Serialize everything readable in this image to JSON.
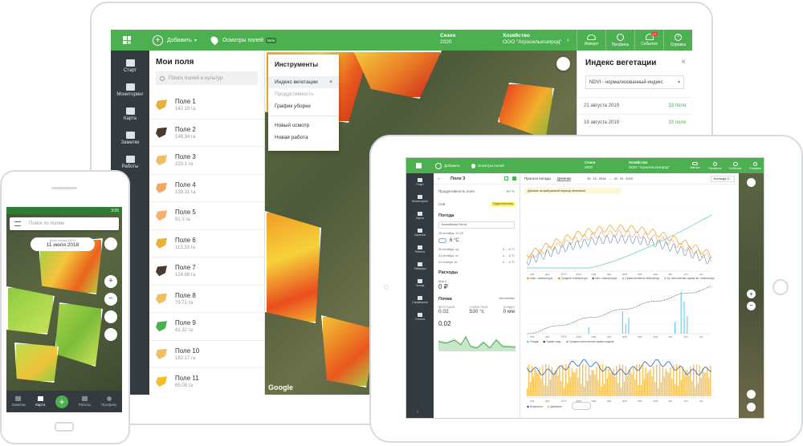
{
  "laptop": {
    "topbar": {
      "add_label": "Добавить",
      "inspections_label": "Осмотры полей",
      "beta": "Beta",
      "season_label": "Сезон",
      "season_value": "2020",
      "farm_label": "Хозяйство",
      "farm_value": "ООО \"Агросельхозпрод\"",
      "import": "Импорт",
      "profile": "Профиль",
      "events": "События",
      "events_badge": "22",
      "help": "Справка"
    },
    "sidebar": [
      "Старт",
      "Мониторинг",
      "Карта",
      "Заметки",
      "Работы",
      "Таймеры",
      "Склад",
      "Справочник",
      "Отчеты"
    ],
    "fields_panel": {
      "title": "Мои поля",
      "search_placeholder": "Поиск полей и культур",
      "fields": [
        {
          "name": "Поле 1",
          "area": "142.18 га",
          "color": "#e8b23a"
        },
        {
          "name": "Поле 2",
          "area": "148.34 га",
          "color": "#4a3a30"
        },
        {
          "name": "Поле 3",
          "area": "223.1 га",
          "color": "#f0c060"
        },
        {
          "name": "Поле 4",
          "area": "139.31 га",
          "color": "#f2a860"
        },
        {
          "name": "Поле 5",
          "area": "91.3 га",
          "color": "#f6b070"
        },
        {
          "name": "Поле 6",
          "area": "113.33 га",
          "color": "#e8b23a"
        },
        {
          "name": "Поле 7",
          "area": "124.68 га",
          "color": "#4a3a30"
        },
        {
          "name": "Поле 8",
          "area": "79.71 га",
          "color": "#f0c060"
        },
        {
          "name": "Поле 9",
          "area": "41.32 га",
          "color": "#4caf50"
        },
        {
          "name": "Поле 10",
          "area": "182.17 га",
          "color": "#f0c060"
        },
        {
          "name": "Поле 11",
          "area": "65.08 га",
          "color": "#f4c030"
        }
      ]
    },
    "tools": {
      "title": "Инструменты",
      "items": [
        "Индекс вегетации",
        "Продуктивность",
        "График уборки",
        "Новый осмотр",
        "Новая работа"
      ],
      "close": "×"
    },
    "map_brand": "Google",
    "vegetation": {
      "title": "Индекс вегетации",
      "select": "NDVI - нормализованный индекс",
      "rows": [
        {
          "date": "21 августа 2019",
          "count": "33 поля"
        },
        {
          "date": "19 августа 2019",
          "count": "33 поля"
        }
      ]
    }
  },
  "phone": {
    "time": "3:05",
    "search_placeholder": "Поиск по полям",
    "date_caption": "Дата снимка NDVI",
    "date": "11 июля 2018",
    "nav": [
      "Заметки",
      "Карта",
      "Работы",
      "Профиль"
    ]
  },
  "tablet": {
    "topbar": {
      "add_label": "Добавить",
      "inspections_label": "Осмотры полей",
      "season_label": "Сезон",
      "season_value": "2020",
      "farm_label": "Хозяйство",
      "farm_value": "ООО \"Агросельхозпрод\"",
      "import": "Импорт",
      "profile": "Профиль",
      "events": "События",
      "help": "Справка"
    },
    "sidebar": [
      "Старт",
      "Мониторинг",
      "Карта",
      "Заметки",
      "Работы",
      "Таймеры",
      "Склад",
      "Справочник",
      "Отчеты"
    ],
    "panel": {
      "title": "Поле 3",
      "productivity": "Продуктивность поля",
      "productivity_value": "90 %",
      "crop_label": "Сев",
      "crop_value": "Подсолнечник",
      "weather_title": "Погода",
      "weather_station": "Каспийская Бетта",
      "weather_date": "29 октября, 17:02",
      "weather_temp": "6 °С",
      "forecast": [
        {
          "day": "30 октября, ср",
          "temp": "5 ... 8 °С"
        },
        {
          "day": "31 октября, чт",
          "temp": "-1 ... 6 °С"
        },
        {
          "day": "01 ноября, пт",
          "temp": "-2 ... 4 °С"
        }
      ],
      "expenses_title": "Расходы",
      "expenses_total_label": "Всего",
      "expenses_total": "0 ₽",
      "soil_title": "Почва",
      "soil_type": "Чернозёмы",
      "soil_metrics": [
        {
          "label": "ВЕГЕТАЦИЯ",
          "value": "0.02"
        },
        {
          "label": "СУММА ТЕМП.",
          "value": "530 °с"
        },
        {
          "label": "ОСАДКИ",
          "value": "0 мм"
        }
      ],
      "chart_value": "0.02"
    },
    "charts": {
      "tab_weather": "Прогноз погоды",
      "tab_diary": "Дневник",
      "date_from": "30 . 10 . 2018",
      "date_to": "29 . 10 . 2019",
      "station": "Костанда О...",
      "notice": "Данные за выбранный период неполные",
      "legend1": [
        "Макс. температура",
        "Средняя температура",
        "Мин. температура",
        "Сумма активных температур",
        "Кр. многолетняя сумма акт. температур"
      ],
      "legend2": [
        "Осадки",
        "Сумма осад.",
        "Средняя многолетняя сумма осадков"
      ],
      "legend3": [
        "Влажность",
        "Давление"
      ],
      "months": [
        "ноя.",
        "дек.",
        "2019",
        "фев.",
        "мар.",
        "апр.",
        "май",
        "июн.",
        "июл.",
        "авг.",
        "сен.",
        "окт."
      ]
    }
  }
}
